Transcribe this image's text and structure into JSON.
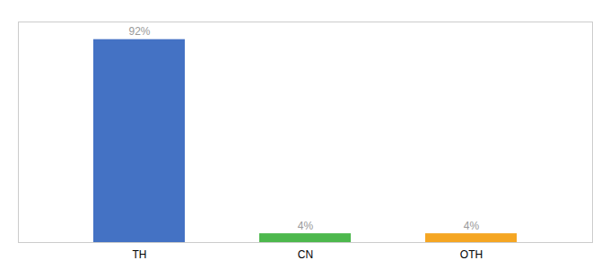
{
  "chart_data": {
    "type": "bar",
    "categories": [
      "TH",
      "CN",
      "OTH"
    ],
    "values": [
      92,
      4,
      4
    ],
    "value_labels": [
      "92%",
      "4%",
      "4%"
    ],
    "colors": [
      "#4472c4",
      "#4db84d",
      "#f5a623"
    ],
    "ylim": [
      0,
      100
    ],
    "data_labels": true,
    "tick_labels": "x",
    "grid": false
  }
}
